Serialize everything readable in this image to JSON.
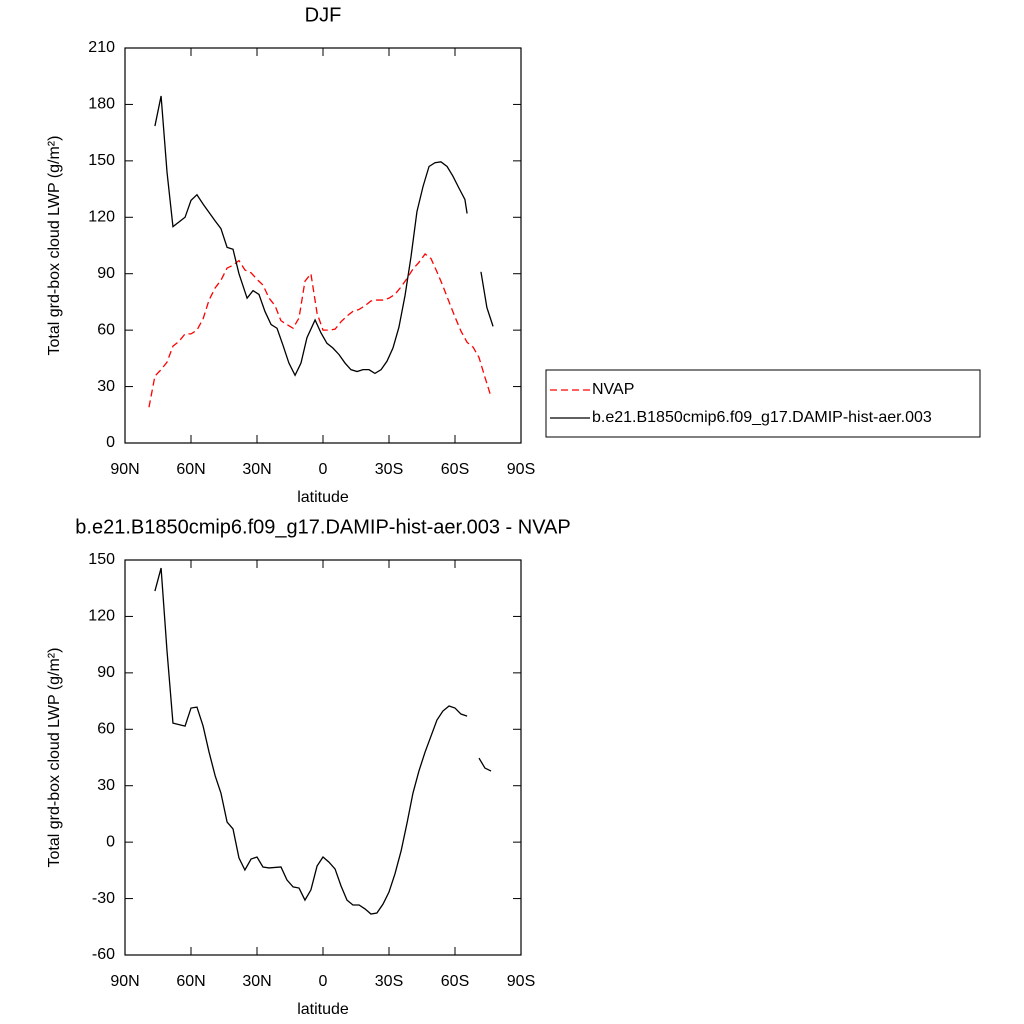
{
  "chart_data": [
    {
      "type": "line",
      "title": "DJF",
      "xlabel": "latitude",
      "ylabel": "Total grd-box cloud LWP (g/m²)",
      "xlim": [
        90,
        -90
      ],
      "xticks": [
        {
          "value": 90,
          "label": "90N"
        },
        {
          "value": 60,
          "label": "60N"
        },
        {
          "value": 30,
          "label": "30N"
        },
        0,
        {
          "value": -30,
          "label": "30S"
        },
        {
          "value": -60,
          "label": "60S"
        },
        {
          "value": -90,
          "label": "90S"
        }
      ],
      "ylim": [
        0,
        210
      ],
      "yticks": [
        0,
        30,
        60,
        90,
        120,
        150,
        180,
        210
      ],
      "legend": "right",
      "series": [
        {
          "name": "NVAP",
          "color": "#ff0000",
          "dash": true,
          "x": [
            79.1,
            76.4,
            73.6,
            70.9,
            68.2,
            65.5,
            62.7,
            60,
            57.3,
            54.5,
            51.8,
            49,
            46.4,
            43.6,
            40.9,
            38.2,
            35.5,
            32.7,
            30,
            27.3,
            24.5,
            21.8,
            19.1,
            16.4,
            13.6,
            10.9,
            8.2,
            5.5,
            2.7,
            0,
            -2.7,
            -5.5,
            -8.2,
            -10.9,
            -13.6,
            -16.4,
            -19.1,
            -21.8,
            -24.5,
            -27.3,
            -30,
            -32.7,
            -35.5,
            -38.2,
            -40.9,
            -43.6,
            -46.4,
            -49.1,
            -51.8,
            -54.5,
            -57.3,
            -60,
            -62.7,
            -65.5,
            -68.2,
            -70.9,
            -73.6,
            -76.4
          ],
          "values": [
            19,
            35.6,
            39,
            43,
            51.5,
            54,
            58,
            58,
            60,
            66,
            76,
            82.5,
            86.5,
            93,
            94.5,
            97,
            92,
            90.5,
            87,
            84,
            77,
            73,
            65,
            63,
            61,
            66.5,
            86,
            90,
            69,
            60,
            60,
            60.5,
            64.5,
            67.5,
            70,
            71,
            73,
            75.5,
            76,
            76,
            77,
            79,
            83,
            87.5,
            92.5,
            96,
            100.5,
            98,
            91,
            83.5,
            75,
            67,
            59.5,
            53.5,
            51,
            45.5,
            35,
            24.5
          ]
        },
        {
          "name": "b.e21.B1850cmip6.f09_g17.DAMIP-hist-aer.003",
          "color": "#000000",
          "dash": false,
          "x": [
            76.4,
            73.6,
            70.9,
            68.2,
            62.7,
            60,
            57.3,
            54.5,
            49,
            46.4,
            43.6,
            40.9,
            38.2,
            34.5,
            31.8,
            29.1,
            26.4,
            23.6,
            20.9,
            18.2,
            15.5,
            12.7,
            10,
            7.3,
            3.6,
            0.9,
            -1.8,
            -4.5,
            -7.3,
            -10,
            -12.7,
            -15.5,
            -18.2,
            -20.9,
            -23.6,
            -26.4,
            -29.1,
            -31.8,
            -34.5,
            -37.3,
            -40,
            -42.7,
            -45.5,
            -48.2,
            -50.9,
            -53.6,
            -56.4,
            -59,
            -61.8,
            -64.5,
            -65.5,
            -68.2,
            -71.8,
            -74.5,
            -77.3
          ],
          "values": [
            168.5,
            184.5,
            144,
            115,
            120,
            129,
            132,
            127,
            118,
            114,
            104,
            103,
            90,
            77,
            81,
            79,
            70,
            63,
            61,
            52,
            42.5,
            36,
            42.5,
            56,
            65.4,
            58.5,
            53,
            50.5,
            47,
            42.5,
            39,
            38,
            39,
            39,
            37,
            39,
            43.5,
            50.5,
            61.5,
            78.5,
            99,
            123,
            136.5,
            147,
            149,
            149.5,
            147,
            142,
            135.5,
            129.5,
            122,
            null,
            91,
            72,
            62
          ]
        }
      ]
    },
    {
      "type": "line",
      "title": "b.e21.B1850cmip6.f09_g17.DAMIP-hist-aer.003 - NVAP",
      "xlabel": "latitude",
      "ylabel": "Total grd-box cloud LWP (g/m²)",
      "xlim": [
        90,
        -90
      ],
      "xticks": [
        {
          "value": 90,
          "label": "90N"
        },
        {
          "value": 60,
          "label": "60N"
        },
        {
          "value": 30,
          "label": "30N"
        },
        0,
        {
          "value": -30,
          "label": "30S"
        },
        {
          "value": -60,
          "label": "60S"
        },
        {
          "value": -90,
          "label": "90S"
        }
      ],
      "ylim": [
        -60,
        150
      ],
      "yticks": [
        -60,
        -30,
        0,
        30,
        60,
        90,
        120,
        150
      ],
      "series": [
        {
          "color": "#000000",
          "dash": false,
          "x": [
            76.4,
            73.6,
            70.9,
            68.2,
            62.7,
            60,
            57.3,
            54.5,
            51.8,
            49,
            46.4,
            43.6,
            40.9,
            38.2,
            35.5,
            32.7,
            30,
            27.3,
            24.5,
            19.1,
            16.4,
            13.6,
            10.9,
            8.2,
            5.5,
            2.7,
            0,
            -2.7,
            -5.5,
            -8.2,
            -10.9,
            -13.6,
            -16.4,
            -19.1,
            -21.8,
            -24.5,
            -27.3,
            -30,
            -32.7,
            -35.5,
            -38.2,
            -40.9,
            -43.6,
            -46.4,
            -49.1,
            -51.8,
            -54.5,
            -57.3,
            -60,
            -62.7,
            -65.5,
            -68.2,
            -70.9,
            -73.6,
            -76.4
          ],
          "values": [
            133.5,
            145.7,
            101.6,
            63.3,
            61.7,
            71.3,
            71.8,
            61.7,
            47.9,
            35.2,
            26.1,
            10.7,
            7,
            -8.4,
            -14.8,
            -9,
            -7.9,
            -13.2,
            -13.7,
            -13.2,
            -20.1,
            -23.8,
            -24.4,
            -30.8,
            -25.4,
            -12.7,
            -7.9,
            -10.6,
            -14.3,
            -23.3,
            -30.8,
            -33.4,
            -33.4,
            -35.5,
            -38.2,
            -37.7,
            -32.9,
            -26.5,
            -16.9,
            -4.7,
            10.2,
            26.1,
            37.8,
            47.9,
            56.4,
            64.9,
            69.7,
            72.4,
            71.3,
            68.1,
            67,
            null,
            44.7,
            39.4,
            37.8
          ]
        }
      ]
    }
  ]
}
